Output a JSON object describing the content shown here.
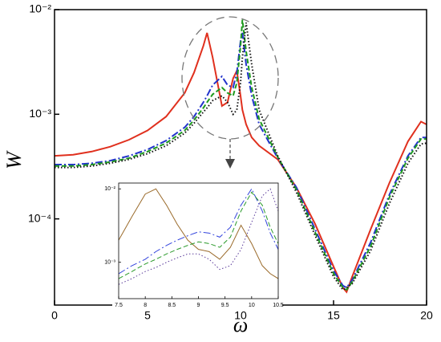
{
  "chart_data": [
    {
      "type": "line",
      "log_y": true,
      "x_label": "ω",
      "y_label": "W",
      "x": [
        0,
        1,
        2,
        3,
        4,
        5,
        6,
        7,
        7.5,
        8,
        8.2,
        8.5,
        9,
        9.3,
        9.6,
        9.8,
        10,
        10.1,
        10.3,
        10.6,
        11,
        12,
        13,
        14,
        15,
        15.5,
        15.7,
        16,
        17,
        18,
        19,
        19.7,
        20
      ],
      "xlim": [
        0,
        20
      ],
      "xticks": [
        0,
        5,
        10,
        15,
        20
      ],
      "ylim": [
        1.5e-05,
        0.01
      ],
      "yticks": [
        {
          "value": 0.01,
          "label": "10⁻²"
        },
        {
          "value": 0.001,
          "label": "10⁻³"
        },
        {
          "value": 0.0001,
          "label": "10⁻⁴"
        }
      ],
      "series": [
        {
          "color": "#e0301e",
          "dash": "solid",
          "values": [
            0.0004,
            0.00041,
            0.00044,
            0.00049,
            0.00057,
            0.0007,
            0.00095,
            0.0016,
            0.0025,
            0.0045,
            0.006,
            0.0035,
            0.0012,
            0.0013,
            0.0022,
            0.0026,
            0.0015,
            0.0011,
            0.0008,
            0.0006,
            0.0005,
            0.00037,
            0.0002,
            9e-05,
            3.5e-05,
            2.2e-05,
            2e-05,
            2.8e-05,
            8e-05,
            0.00022,
            0.00055,
            0.00085,
            0.0008
          ]
        },
        {
          "color": "#2233cc",
          "dash": "dashdot",
          "values": [
            0.00033,
            0.00033,
            0.00034,
            0.00036,
            0.0004,
            0.00046,
            0.00056,
            0.00075,
            0.00095,
            0.0013,
            0.0015,
            0.0019,
            0.0023,
            0.0019,
            0.0018,
            0.0025,
            0.005,
            0.006,
            0.003,
            0.0015,
            0.0008,
            0.00038,
            0.0002,
            8e-05,
            3.2e-05,
            2.3e-05,
            2.2e-05,
            2.6e-05,
            6e-05,
            0.00017,
            0.0004,
            0.0006,
            0.0006
          ]
        },
        {
          "color": "#1e9a1e",
          "dash": "dashed",
          "values": [
            0.00032,
            0.00032,
            0.00033,
            0.00035,
            0.00038,
            0.00044,
            0.00053,
            0.0007,
            0.00088,
            0.00115,
            0.0013,
            0.00155,
            0.0018,
            0.0016,
            0.0015,
            0.002,
            0.0045,
            0.008,
            0.004,
            0.0018,
            0.0009,
            0.00039,
            0.00019,
            7.5e-05,
            3e-05,
            2.2e-05,
            2.1e-05,
            2.5e-05,
            5.5e-05,
            0.00016,
            0.00038,
            0.00058,
            0.00058
          ]
        },
        {
          "color": "#111111",
          "dash": "dotted",
          "values": [
            0.00031,
            0.00031,
            0.00032,
            0.00034,
            0.00037,
            0.00042,
            0.0005,
            0.00066,
            0.00082,
            0.00105,
            0.00115,
            0.00135,
            0.0015,
            0.0013,
            0.001,
            0.0011,
            0.002,
            0.0035,
            0.0075,
            0.003,
            0.0011,
            0.0004,
            0.00018,
            7e-05,
            2.8e-05,
            2.1e-05,
            2.2e-05,
            2.4e-05,
            5e-05,
            0.00014,
            0.00034,
            0.00052,
            0.00053
          ]
        }
      ]
    },
    {
      "type": "line",
      "log_y": true,
      "x": [
        7.5,
        7.75,
        8,
        8.2,
        8.4,
        8.6,
        8.8,
        9,
        9.2,
        9.4,
        9.6,
        9.8,
        10,
        10.2,
        10.35,
        10.5
      ],
      "xlim": [
        7.5,
        10.5
      ],
      "xticks": [
        7.5,
        8,
        8.5,
        9,
        9.5,
        10,
        10.5
      ],
      "ylim": [
        0.00032,
        0.012
      ],
      "yticks": [
        {
          "value": 0.01,
          "label": "10⁻²"
        },
        {
          "value": 0.001,
          "label": "10⁻³"
        }
      ],
      "series": [
        {
          "color": "#9a6a2a",
          "dash": "solid",
          "values": [
            0.002,
            0.0042,
            0.0085,
            0.01,
            0.006,
            0.0033,
            0.002,
            0.0015,
            0.0014,
            0.0011,
            0.0016,
            0.0032,
            0.0018,
            0.0009,
            0.0007,
            0.0006
          ]
        },
        {
          "color": "#3344dd",
          "dash": "dashdot",
          "values": [
            0.0007,
            0.0009,
            0.0011,
            0.0014,
            0.0017,
            0.002,
            0.0023,
            0.0026,
            0.0025,
            0.0022,
            0.003,
            0.006,
            0.01,
            0.005,
            0.0025,
            0.0015
          ]
        },
        {
          "color": "#2a9a2a",
          "dash": "dashed",
          "values": [
            0.0006,
            0.00075,
            0.00095,
            0.0011,
            0.0013,
            0.0015,
            0.0017,
            0.0019,
            0.0018,
            0.0016,
            0.0022,
            0.005,
            0.009,
            0.006,
            0.003,
            0.0018
          ]
        },
        {
          "color": "#5a3a9a",
          "dash": "dotted",
          "values": [
            0.0005,
            0.0006,
            0.00075,
            0.00085,
            0.001,
            0.00115,
            0.0013,
            0.0013,
            0.0011,
            0.0008,
            0.0009,
            0.0015,
            0.0035,
            0.008,
            0.01,
            0.005
          ]
        }
      ]
    }
  ]
}
